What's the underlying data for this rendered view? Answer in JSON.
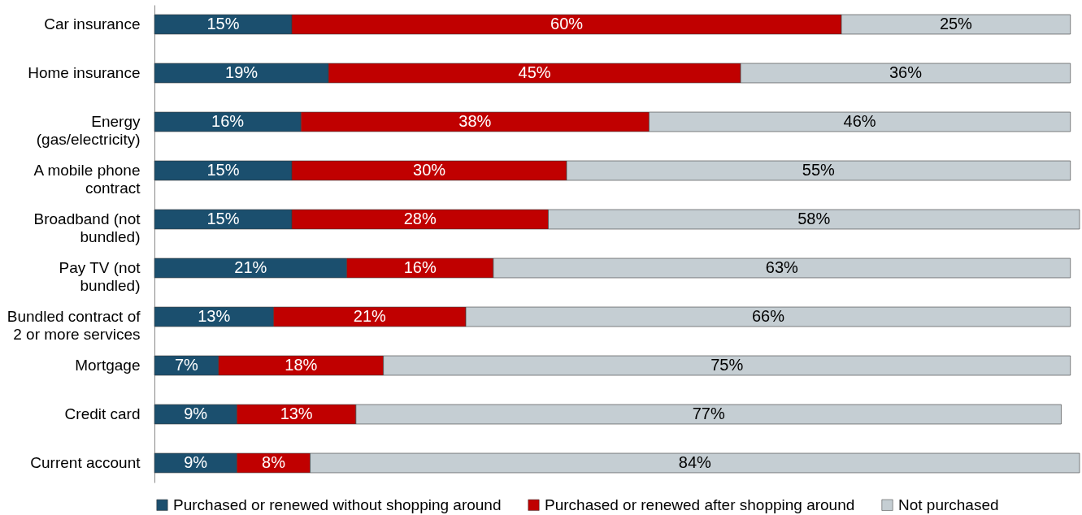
{
  "chart_data": {
    "type": "bar",
    "orientation": "horizontal",
    "stacked": true,
    "legend": "bottom",
    "categories": [
      "Car insurance",
      "Home insurance",
      "Energy (gas/electricity)",
      "A mobile phone contract",
      "Broadband (not bundled)",
      "Pay TV (not bundled)",
      "Bundled contract of 2 or more services",
      "Mortgage",
      "Credit card",
      "Current account"
    ],
    "series": [
      {
        "name": "Purchased or renewed without shopping around",
        "color": "#1b4f6e",
        "values": [
          15,
          19,
          16,
          15,
          15,
          21,
          13,
          7,
          9,
          9
        ],
        "value_labels": [
          "15%",
          "19%",
          "16%",
          "15%",
          "15%",
          "21%",
          "13%",
          "7%",
          "9%",
          "9%"
        ]
      },
      {
        "name": "Purchased or renewed after shopping around",
        "color": "#c00000",
        "values": [
          60,
          45,
          38,
          30,
          28,
          16,
          21,
          18,
          13,
          8
        ],
        "value_labels": [
          "60%",
          "45%",
          "38%",
          "30%",
          "28%",
          "16%",
          "21%",
          "18%",
          "13%",
          "8%"
        ]
      },
      {
        "name": "Not purchased",
        "color": "#c5ced3",
        "values": [
          25,
          36,
          46,
          55,
          58,
          63,
          66,
          75,
          77,
          84
        ],
        "value_labels": [
          "25%",
          "36%",
          "46%",
          "55%",
          "58%",
          "63%",
          "66%",
          "75%",
          "77%",
          "84%"
        ]
      }
    ]
  }
}
